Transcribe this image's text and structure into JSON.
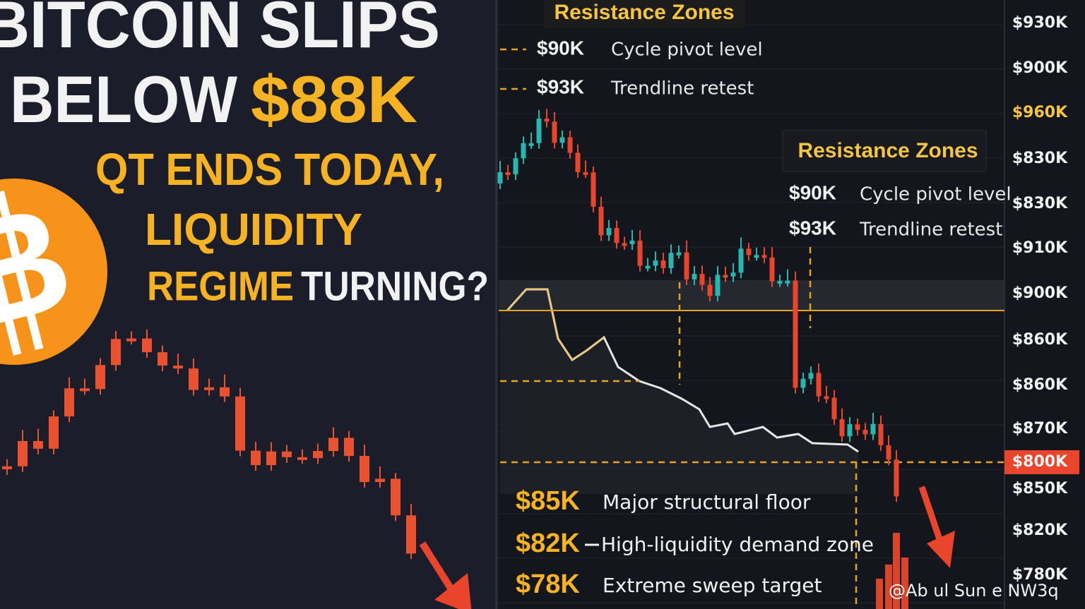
{
  "headline": {
    "line1": "BITCOIN SLIPS",
    "line2_white": "BELOW",
    "line2_accent": "$88K",
    "sub1": "QT ENDS TODAY,",
    "sub2": "LIQUIDITY",
    "sub3_accent": "REGIME",
    "sub3_white": "TURNING?"
  },
  "resistance_top": {
    "title": "Resistance Zones",
    "levels": [
      {
        "price": "$90K",
        "label": "Cycle pivot level"
      },
      {
        "price": "$93K",
        "label": "Trendline retest"
      }
    ]
  },
  "resistance_right": {
    "title": "Resistance Zones",
    "levels": [
      {
        "price": "$90K",
        "label": "Cycle pivot level"
      },
      {
        "price": "$93K",
        "label": "Trendline retest"
      }
    ]
  },
  "supports": [
    {
      "price": "$85K",
      "label": "Major structural floor"
    },
    {
      "price": "$82K",
      "label": "High-liquidity demand zone"
    },
    {
      "price": "$78K",
      "label": "Extreme sweep target"
    }
  ],
  "price_axis": [
    "$930K",
    "$900K",
    "$960K",
    "$830K",
    "$830K",
    "$910K",
    "$900K",
    "$860K",
    "$860K",
    "$870K",
    "$800K",
    "$850K",
    "$820K",
    "$780K"
  ],
  "watermark": "@Ab  ul Sun  e NW3q"
}
